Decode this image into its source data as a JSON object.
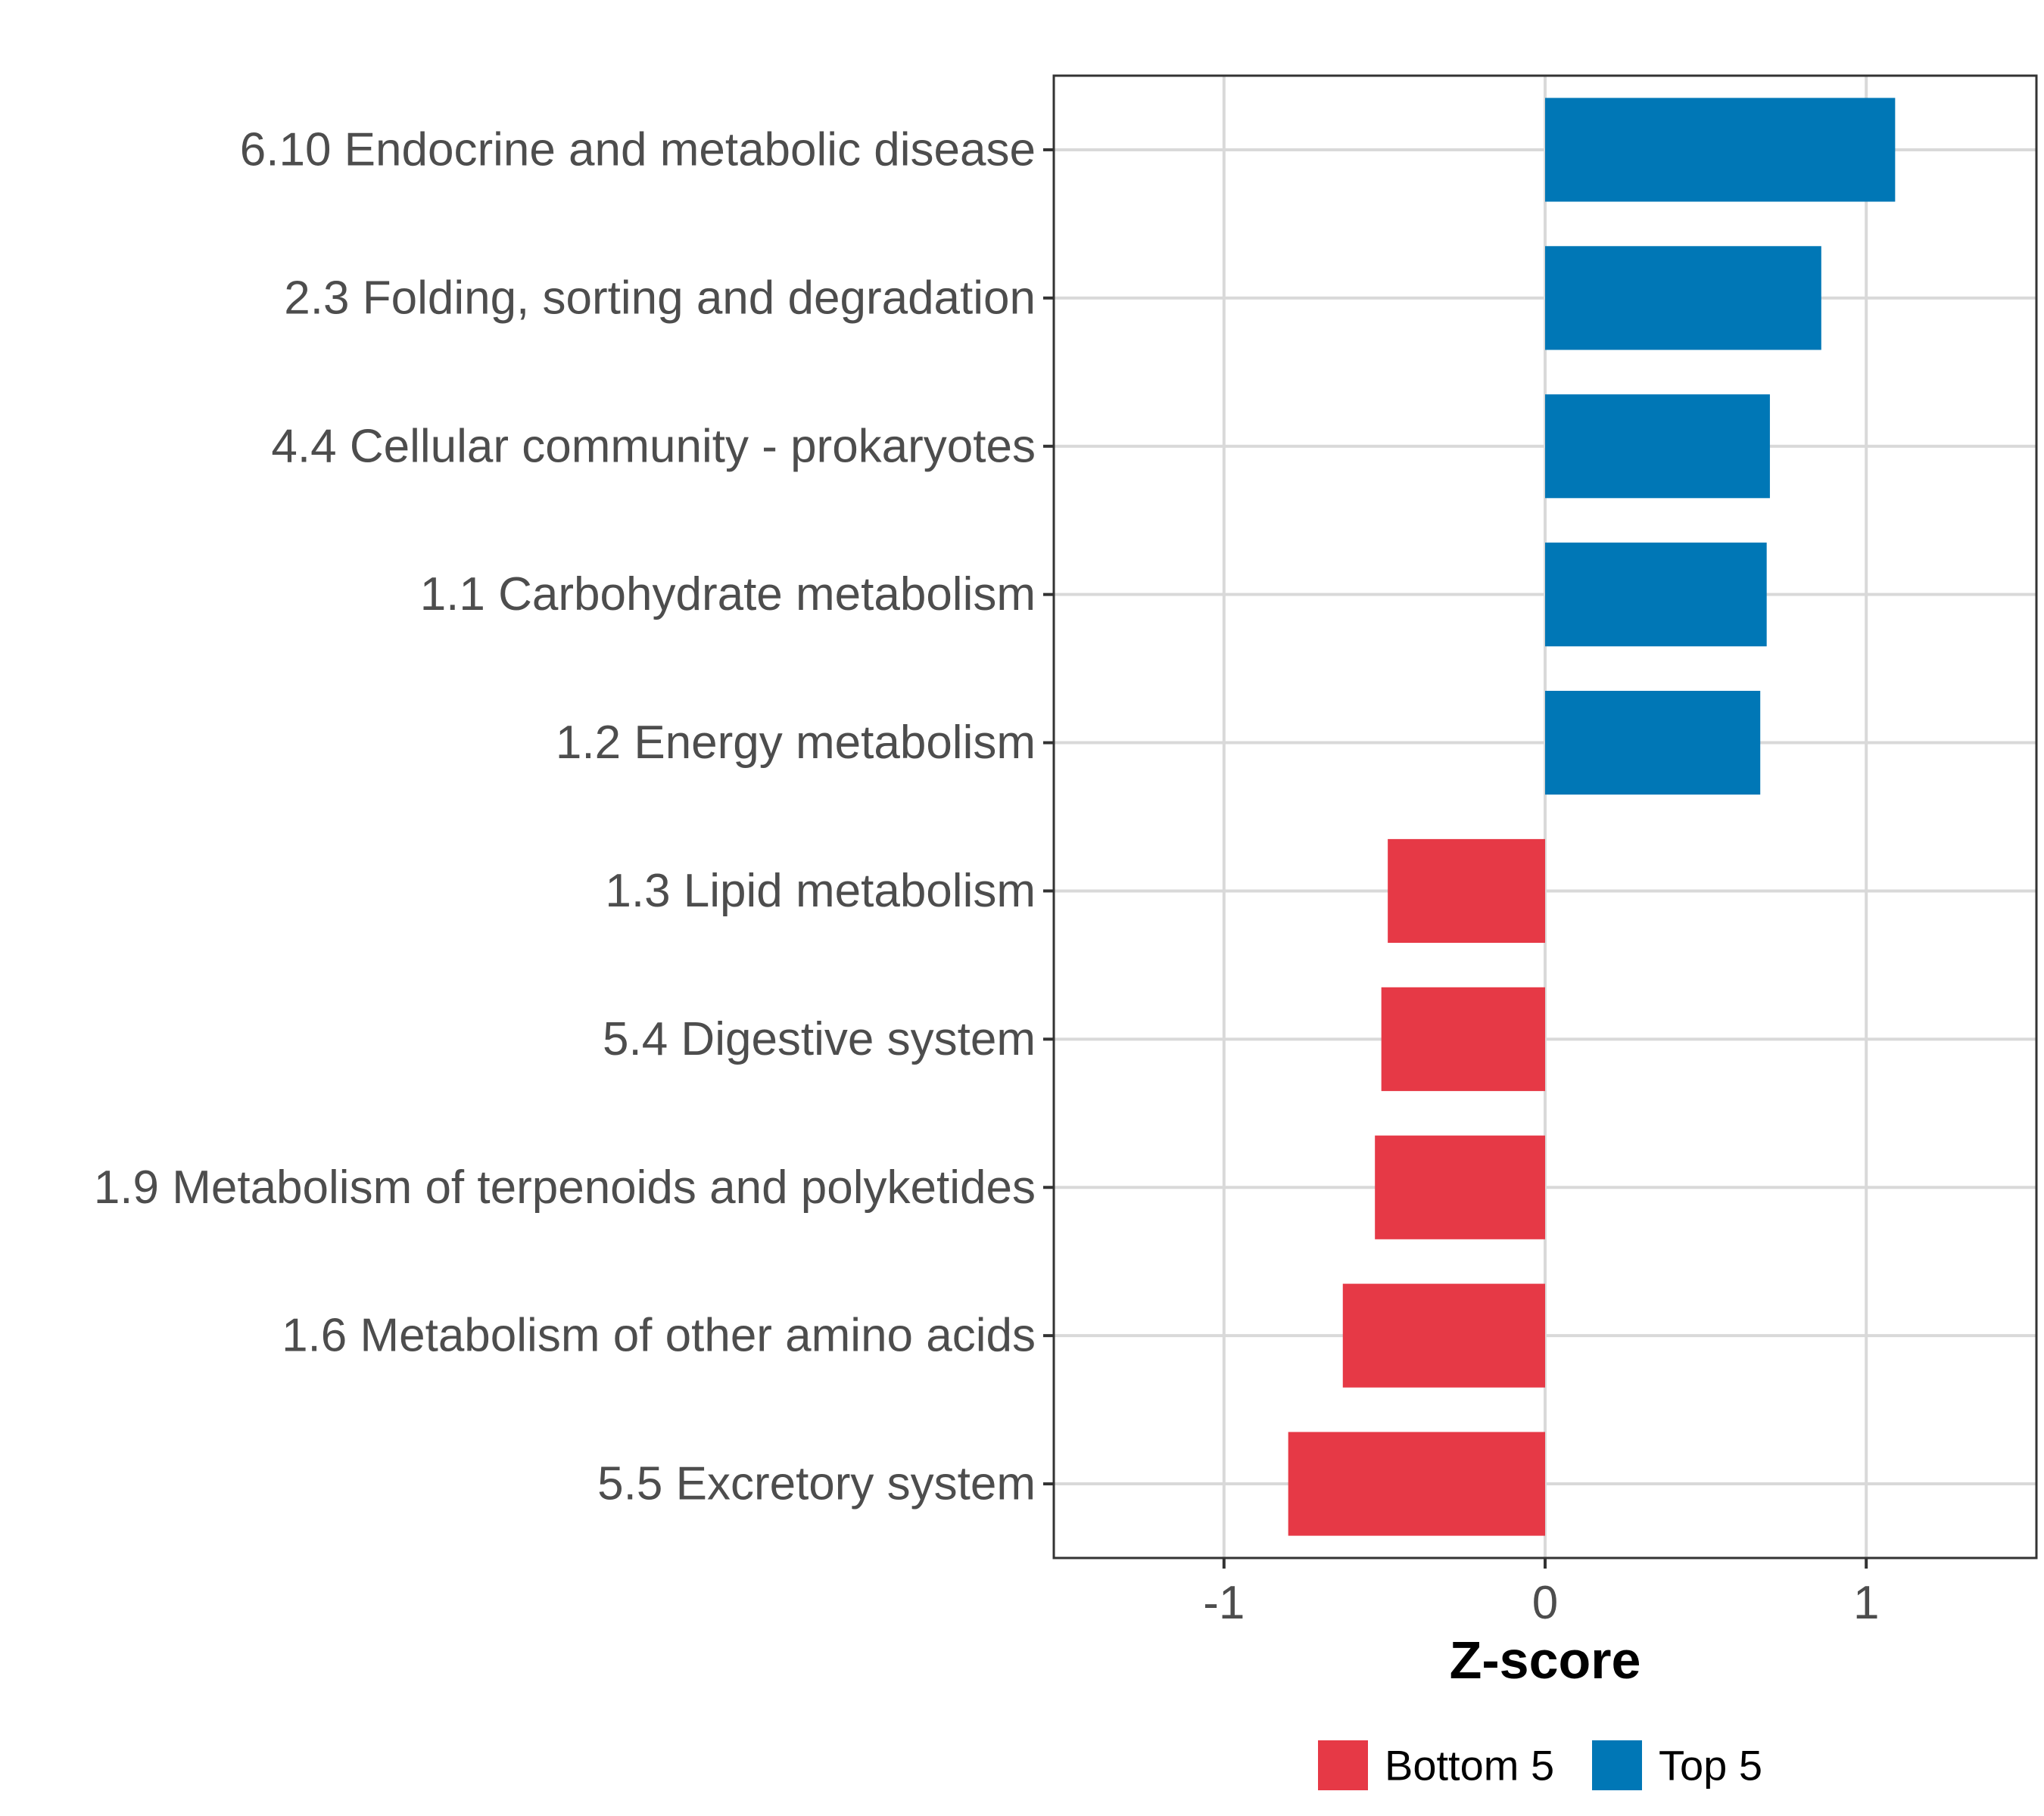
{
  "chart_data": {
    "type": "bar",
    "orientation": "horizontal",
    "title": "",
    "xlabel": "Z-score",
    "ylabel": "",
    "xlim": [
      -1.53,
      1.53
    ],
    "xticks": [
      -1,
      0,
      1
    ],
    "xtick_labels": [
      "-1",
      "0",
      "1"
    ],
    "grid": true,
    "categories": [
      "6.10 Endocrine and metabolic disease",
      "2.3 Folding, sorting and degradation",
      "4.4 Cellular community - prokaryotes",
      "1.1 Carbohydrate metabolism",
      "1.2 Energy metabolism",
      "1.3 Lipid metabolism",
      "5.4 Digestive system",
      "1.9 Metabolism of terpenoids and polyketides",
      "1.6 Metabolism of other amino acids",
      "5.5 Excretory system"
    ],
    "values": [
      1.09,
      0.86,
      0.7,
      0.69,
      0.67,
      -0.49,
      -0.51,
      -0.53,
      -0.63,
      -0.8
    ],
    "groups": [
      "Top 5",
      "Top 5",
      "Top 5",
      "Top 5",
      "Top 5",
      "Bottom 5",
      "Bottom 5",
      "Bottom 5",
      "Bottom 5",
      "Bottom 5"
    ],
    "legend": {
      "position": "bottom",
      "entries": [
        {
          "label": "Bottom 5",
          "color": "#e63946"
        },
        {
          "label": "Top 5",
          "color": "#0077b6"
        }
      ]
    }
  }
}
